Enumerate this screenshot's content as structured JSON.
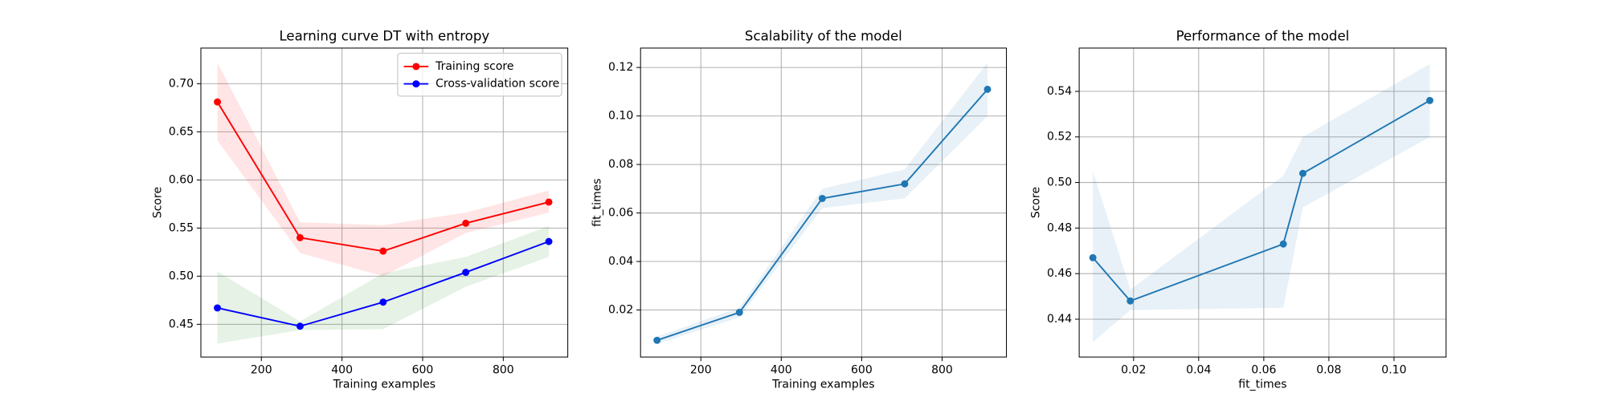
{
  "chart_data": [
    {
      "type": "line",
      "title": "Learning curve DT with entropy",
      "x_label": "Training examples",
      "y_label": "Score",
      "x": [
        91,
        296,
        502,
        707,
        913
      ],
      "series": [
        {
          "name": "Training score",
          "color": "#ff0000",
          "band_color": "#ff0000",
          "values": [
            0.681,
            0.54,
            0.526,
            0.555,
            0.577
          ],
          "lower": [
            0.641,
            0.524,
            0.5,
            0.545,
            0.566
          ],
          "upper": [
            0.722,
            0.556,
            0.553,
            0.566,
            0.589
          ]
        },
        {
          "name": "Cross-validation score",
          "color": "#0000ff",
          "band_color": "#008000",
          "values": [
            0.467,
            0.448,
            0.473,
            0.504,
            0.536
          ],
          "lower": [
            0.43,
            0.444,
            0.445,
            0.489,
            0.52
          ],
          "upper": [
            0.505,
            0.453,
            0.503,
            0.52,
            0.552
          ]
        }
      ],
      "xlim": [
        50,
        960
      ],
      "ylim": [
        0.416,
        0.737
      ],
      "xticks": [
        200,
        400,
        600,
        800
      ],
      "yticks": [
        0.45,
        {
          "value": 0.5,
          "label": "0.50"
        },
        0.55,
        {
          "value": 0.6,
          "label": "0.60"
        },
        0.65,
        {
          "value": 0.7,
          "label": "0.70"
        }
      ],
      "grid": true,
      "legend": "upper right"
    },
    {
      "type": "line",
      "title": "Scalability of the model",
      "x_label": "Training examples",
      "y_label": "fit_times",
      "x": [
        91,
        296,
        502,
        707,
        913
      ],
      "series": [
        {
          "color": "#1f77b4",
          "band_color": "#1f77b4",
          "values": [
            0.0075,
            0.019,
            0.066,
            0.072,
            0.111
          ],
          "lower": [
            0.006,
            0.017,
            0.062,
            0.066,
            0.1
          ],
          "upper": [
            0.009,
            0.021,
            0.07,
            0.078,
            0.122
          ]
        }
      ],
      "xlim": [
        50,
        960
      ],
      "ylim": [
        0.0006,
        0.128
      ],
      "xticks": [
        200,
        400,
        600,
        800
      ],
      "yticks": [
        0.02,
        0.04,
        0.06,
        0.08,
        {
          "value": 0.1,
          "label": "0.10"
        },
        0.12
      ],
      "grid": true
    },
    {
      "type": "line",
      "title": "Performance of the model",
      "x_label": "fit_times",
      "y_label": "Score",
      "x": [
        0.0075,
        0.019,
        0.066,
        0.072,
        0.111
      ],
      "series": [
        {
          "color": "#1f77b4",
          "band_color": "#1f77b4",
          "values": [
            0.467,
            0.448,
            0.473,
            0.504,
            0.536
          ],
          "lower": [
            0.43,
            0.444,
            0.445,
            0.489,
            0.52
          ],
          "upper": [
            0.505,
            0.453,
            0.503,
            0.52,
            0.552
          ]
        }
      ],
      "xlim": [
        0.0033,
        0.116
      ],
      "ylim": [
        0.4234,
        0.559
      ],
      "xticks": [
        0.02,
        0.04,
        0.06,
        0.08,
        {
          "value": 0.1,
          "label": "0.10"
        }
      ],
      "yticks": [
        0.44,
        0.46,
        0.48,
        {
          "value": 0.5,
          "label": "0.50"
        },
        0.52,
        0.54
      ],
      "grid": true
    }
  ]
}
